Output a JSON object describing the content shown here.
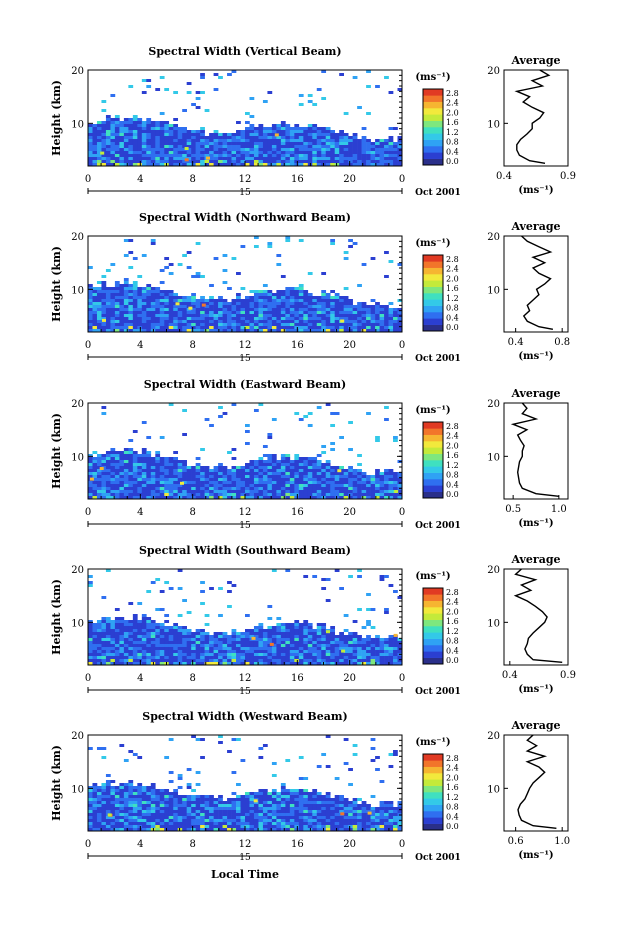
{
  "figure": {
    "xlabel": "Local Time",
    "date_label": "Oct 2001",
    "colorbar_unit": "(ms⁻¹)",
    "colorbar_ticks": [
      "0.0",
      "0.4",
      "0.8",
      "1.2",
      "1.6",
      "2.0",
      "2.4",
      "2.8"
    ],
    "colorbar_colors": [
      "#2a2f8a",
      "#2b3fd1",
      "#2f6ff0",
      "#2fa2f4",
      "#33c9e8",
      "#3fe0c0",
      "#7ee77e",
      "#c4ea3a",
      "#f2e93c",
      "#f6b531",
      "#f2752a",
      "#e13a23"
    ]
  },
  "chart_data": [
    {
      "type": "heatmap",
      "title": "Spectral Width (Vertical Beam)",
      "ylabel": "Height (km)",
      "x_ticks": [
        "0",
        "4",
        "8",
        "12",
        "16",
        "20",
        "0"
      ],
      "y_ticks": [
        "10",
        "20"
      ],
      "xlim": [
        0,
        24
      ],
      "ylim": [
        2,
        20
      ],
      "day_label": "15",
      "profile": {
        "title": "Average",
        "xlabel": "(ms⁻¹)",
        "x_ticks": [
          "0.4",
          "0.9"
        ],
        "xlim": [
          0.4,
          0.9
        ],
        "y_ticks": [
          "10",
          "20"
        ],
        "ylim": [
          2,
          20
        ],
        "height": [
          2.5,
          3,
          4,
          5,
          6,
          7,
          8,
          9,
          10,
          11,
          12,
          13,
          14,
          15,
          16,
          17,
          18,
          19,
          20
        ],
        "value": [
          0.72,
          0.6,
          0.52,
          0.5,
          0.5,
          0.53,
          0.58,
          0.62,
          0.62,
          0.68,
          0.71,
          0.62,
          0.55,
          0.6,
          0.5,
          0.7,
          0.62,
          0.75,
          0.68
        ]
      }
    },
    {
      "type": "heatmap",
      "title": "Spectral Width (Northward Beam)",
      "ylabel": "Height (km)",
      "x_ticks": [
        "0",
        "4",
        "8",
        "12",
        "16",
        "20",
        "0"
      ],
      "y_ticks": [
        "10",
        "20"
      ],
      "xlim": [
        0,
        24
      ],
      "ylim": [
        2,
        20
      ],
      "day_label": "15",
      "profile": {
        "title": "Average",
        "xlabel": "(ms⁻¹)",
        "x_ticks": [
          "0.4",
          "0.8"
        ],
        "xlim": [
          0.3,
          0.85
        ],
        "y_ticks": [
          "10",
          "20"
        ],
        "ylim": [
          2,
          20
        ],
        "height": [
          2.5,
          3,
          4,
          5,
          6,
          7,
          8,
          9,
          10,
          11,
          12,
          13,
          14,
          15,
          16,
          17,
          18,
          19,
          20
        ],
        "value": [
          0.72,
          0.6,
          0.5,
          0.47,
          0.52,
          0.5,
          0.55,
          0.6,
          0.58,
          0.65,
          0.7,
          0.6,
          0.55,
          0.65,
          0.55,
          0.7,
          0.6,
          0.5,
          0.45
        ]
      }
    },
    {
      "type": "heatmap",
      "title": "Spectral Width (Eastward Beam)",
      "ylabel": "Height (km)",
      "x_ticks": [
        "0",
        "4",
        "8",
        "12",
        "16",
        "20",
        "0"
      ],
      "y_ticks": [
        "10",
        "20"
      ],
      "xlim": [
        0,
        24
      ],
      "ylim": [
        2,
        20
      ],
      "day_label": "15",
      "profile": {
        "title": "Average",
        "xlabel": "(ms⁻¹)",
        "x_ticks": [
          "0.5",
          "1.0"
        ],
        "xlim": [
          0.4,
          1.1
        ],
        "y_ticks": [
          "10",
          "20"
        ],
        "ylim": [
          2,
          20
        ],
        "height": [
          2.5,
          3,
          4,
          5,
          6,
          7,
          8,
          9,
          10,
          11,
          12,
          13,
          14,
          15,
          16,
          17,
          18,
          19,
          20
        ],
        "value": [
          1.0,
          0.75,
          0.6,
          0.57,
          0.56,
          0.55,
          0.56,
          0.57,
          0.6,
          0.6,
          0.62,
          0.58,
          0.55,
          0.65,
          0.5,
          0.75,
          0.6,
          0.65,
          0.6
        ]
      }
    },
    {
      "type": "heatmap",
      "title": "Spectral Width (Southward Beam)",
      "ylabel": "Height (km)",
      "x_ticks": [
        "0",
        "4",
        "8",
        "12",
        "16",
        "20",
        "0"
      ],
      "y_ticks": [
        "10",
        "20"
      ],
      "xlim": [
        0,
        24
      ],
      "ylim": [
        2,
        20
      ],
      "day_label": "15",
      "profile": {
        "title": "Average",
        "xlabel": "(ms⁻¹)",
        "x_ticks": [
          "0.4",
          "0.9"
        ],
        "xlim": [
          0.35,
          0.9
        ],
        "y_ticks": [
          "10",
          "20"
        ],
        "ylim": [
          2,
          20
        ],
        "height": [
          2.5,
          3,
          4,
          5,
          6,
          7,
          8,
          9,
          10,
          11,
          12,
          13,
          14,
          15,
          16,
          17,
          18,
          19,
          20
        ],
        "value": [
          0.85,
          0.6,
          0.55,
          0.53,
          0.55,
          0.56,
          0.6,
          0.65,
          0.7,
          0.72,
          0.68,
          0.62,
          0.55,
          0.45,
          0.58,
          0.5,
          0.62,
          0.45,
          0.5
        ]
      }
    },
    {
      "type": "heatmap",
      "title": "Spectral Width (Westward Beam)",
      "ylabel": "Height (km)",
      "x_ticks": [
        "0",
        "4",
        "8",
        "12",
        "16",
        "20",
        "0"
      ],
      "y_ticks": [
        "10",
        "20"
      ],
      "xlim": [
        0,
        24
      ],
      "ylim": [
        2,
        20
      ],
      "day_label": "15",
      "profile": {
        "title": "Average",
        "xlabel": "(ms⁻¹)",
        "x_ticks": [
          "0.6",
          "1.0"
        ],
        "xlim": [
          0.5,
          1.05
        ],
        "y_ticks": [
          "10",
          "20"
        ],
        "ylim": [
          2,
          20
        ],
        "height": [
          2.5,
          3,
          4,
          5,
          6,
          7,
          8,
          9,
          10,
          11,
          12,
          13,
          14,
          15,
          16,
          17,
          18,
          19,
          20
        ],
        "value": [
          0.95,
          0.75,
          0.65,
          0.63,
          0.62,
          0.64,
          0.68,
          0.7,
          0.72,
          0.75,
          0.8,
          0.85,
          0.8,
          0.7,
          0.85,
          0.7,
          0.78,
          0.7,
          0.75
        ]
      }
    }
  ]
}
